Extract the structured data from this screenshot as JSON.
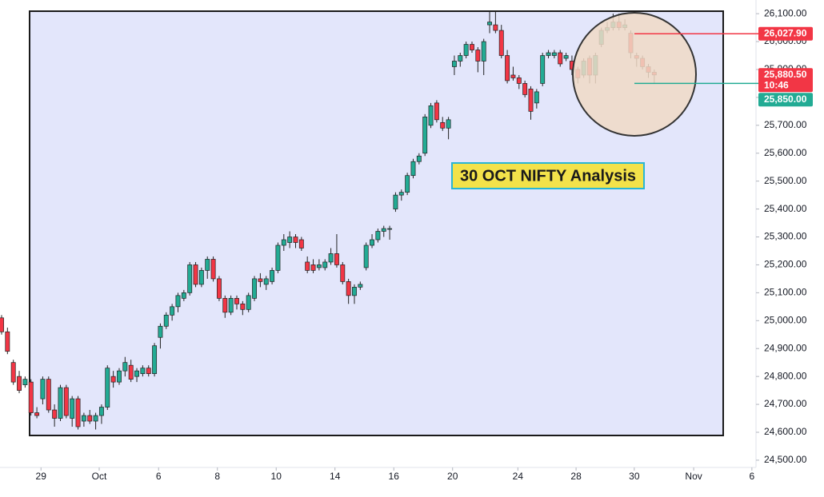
{
  "chart_data": {
    "type": "candlestick",
    "up_color": "#22ab94",
    "down_color": "#f23645",
    "annotation": "30 OCT NIFTY Analysis",
    "countdown": "10:46",
    "ohlc": [
      [
        25010,
        25020,
        24950,
        24960
      ],
      [
        24960,
        24975,
        24880,
        24890
      ],
      [
        24850,
        24860,
        24770,
        24780
      ],
      [
        24800,
        24820,
        24740,
        24750
      ],
      [
        24770,
        24800,
        24760,
        24790
      ],
      [
        24780,
        24790,
        24660,
        24670
      ],
      [
        24670,
        24690,
        24650,
        24660
      ],
      [
        24720,
        24800,
        24700,
        24790
      ],
      [
        24790,
        24800,
        24670,
        24680
      ],
      [
        24680,
        24700,
        24620,
        24650
      ],
      [
        24650,
        24770,
        24640,
        24760
      ],
      [
        24760,
        24770,
        24650,
        24660
      ],
      [
        24650,
        24730,
        24620,
        24720
      ],
      [
        24720,
        24730,
        24610,
        24620
      ],
      [
        24640,
        24670,
        24620,
        24660
      ],
      [
        24660,
        24680,
        24630,
        24640
      ],
      [
        24640,
        24670,
        24610,
        24660
      ],
      [
        24660,
        24700,
        24630,
        24690
      ],
      [
        24690,
        24840,
        24680,
        24830
      ],
      [
        24800,
        24820,
        24760,
        24780
      ],
      [
        24780,
        24830,
        24770,
        24820
      ],
      [
        24820,
        24870,
        24800,
        24850
      ],
      [
        24840,
        24860,
        24780,
        24790
      ],
      [
        24800,
        24830,
        24780,
        24820
      ],
      [
        24810,
        24840,
        24800,
        24830
      ],
      [
        24830,
        24840,
        24800,
        24810
      ],
      [
        24810,
        24920,
        24800,
        24910
      ],
      [
        24940,
        24990,
        24900,
        24980
      ],
      [
        24980,
        25030,
        24970,
        25020
      ],
      [
        25020,
        25060,
        25000,
        25050
      ],
      [
        25050,
        25100,
        25030,
        25090
      ],
      [
        25080,
        25110,
        25070,
        25100
      ],
      [
        25100,
        25210,
        25090,
        25200
      ],
      [
        25200,
        25210,
        25120,
        25130
      ],
      [
        25130,
        25190,
        25120,
        25180
      ],
      [
        25180,
        25230,
        25150,
        25220
      ],
      [
        25220,
        25230,
        25140,
        25150
      ],
      [
        25150,
        25160,
        25070,
        25080
      ],
      [
        25080,
        25090,
        25010,
        25030
      ],
      [
        25030,
        25090,
        25020,
        25080
      ],
      [
        25080,
        25090,
        25040,
        25060
      ],
      [
        25060,
        25070,
        25020,
        25040
      ],
      [
        25040,
        25100,
        25030,
        25090
      ],
      [
        25080,
        25160,
        25070,
        25150
      ],
      [
        25150,
        25170,
        25120,
        25140
      ],
      [
        25130,
        25160,
        25110,
        25150
      ],
      [
        25140,
        25190,
        25130,
        25180
      ],
      [
        25180,
        25280,
        25170,
        25270
      ],
      [
        25270,
        25310,
        25250,
        25290
      ],
      [
        25280,
        25320,
        25260,
        25300
      ],
      [
        25300,
        25310,
        25260,
        25280
      ],
      [
        25290,
        25300,
        25250,
        25260
      ],
      [
        25210,
        25230,
        25170,
        25180
      ],
      [
        25200,
        25220,
        25170,
        25180
      ],
      [
        25190,
        25220,
        25180,
        25200
      ],
      [
        25190,
        25220,
        25180,
        25210
      ],
      [
        25210,
        25260,
        25200,
        25240
      ],
      [
        25240,
        25310,
        25190,
        25200
      ],
      [
        25200,
        25210,
        25130,
        25140
      ],
      [
        25140,
        25150,
        25060,
        25090
      ],
      [
        25090,
        25130,
        25060,
        25120
      ],
      [
        25120,
        25140,
        25110,
        25130
      ],
      [
        25190,
        25280,
        25180,
        25270
      ],
      [
        25270,
        25310,
        25260,
        25290
      ],
      [
        25290,
        25330,
        25280,
        25320
      ],
      [
        25320,
        25340,
        25300,
        25330
      ],
      [
        25330,
        25340,
        25290,
        25330
      ],
      [
        25400,
        25460,
        25390,
        25450
      ],
      [
        25450,
        25470,
        25430,
        25460
      ],
      [
        25460,
        25530,
        25450,
        25520
      ],
      [
        25520,
        25580,
        25510,
        25570
      ],
      [
        25570,
        25600,
        25560,
        25590
      ],
      [
        25600,
        25740,
        25590,
        25730
      ],
      [
        25700,
        25780,
        25690,
        25770
      ],
      [
        25780,
        25790,
        25710,
        25720
      ],
      [
        25710,
        25730,
        25680,
        25690
      ],
      [
        25690,
        25730,
        25650,
        25720
      ],
      [
        25910,
        25950,
        25880,
        25930
      ],
      [
        25930,
        25960,
        25910,
        25950
      ],
      [
        25950,
        26000,
        25940,
        25990
      ],
      [
        25990,
        26000,
        25960,
        25970
      ],
      [
        25970,
        25980,
        25890,
        25930
      ],
      [
        25930,
        26010,
        25880,
        26000
      ],
      [
        26060,
        26110,
        26030,
        26070
      ],
      [
        26060,
        26110,
        26030,
        26040
      ],
      [
        26040,
        26060,
        25940,
        25950
      ],
      [
        25950,
        25970,
        25850,
        25860
      ],
      [
        25880,
        25910,
        25860,
        25870
      ],
      [
        25870,
        25880,
        25830,
        25850
      ],
      [
        25850,
        25860,
        25800,
        25810
      ],
      [
        25830,
        25840,
        25720,
        25750
      ],
      [
        25780,
        25830,
        25760,
        25820
      ],
      [
        25850,
        25960,
        25840,
        25950
      ],
      [
        25950,
        25970,
        25940,
        25960
      ],
      [
        25950,
        25970,
        25940,
        25960
      ],
      [
        25960,
        25970,
        25910,
        25920
      ],
      [
        25940,
        25960,
        25930,
        25950
      ],
      [
        25930,
        25950,
        25880,
        25900
      ],
      [
        25900,
        25910,
        25850,
        25870
      ],
      [
        25880,
        25940,
        25870,
        25930
      ],
      [
        25940,
        25950,
        25850,
        25880
      ],
      [
        25880,
        25960,
        25850,
        25950
      ],
      [
        25990,
        26050,
        25980,
        26040
      ],
      [
        26040,
        26070,
        26030,
        26050
      ],
      [
        26050,
        26100,
        26040,
        26070
      ],
      [
        26070,
        26100,
        26040,
        26050
      ],
      [
        26050,
        26080,
        26040,
        26060
      ],
      [
        26030,
        26040,
        25940,
        25960
      ],
      [
        25950,
        25960,
        25910,
        25940
      ],
      [
        25940,
        25950,
        25900,
        25910
      ],
      [
        25910,
        25920,
        25870,
        25890
      ],
      [
        25890,
        25900,
        25850,
        25880.5
      ]
    ],
    "xlim": [
      -0.27,
      128.3
    ],
    "xticks": [
      {
        "value": 6.7,
        "label": "29"
      },
      {
        "value": 16.6,
        "label": "Oct"
      },
      {
        "value": 26.7,
        "label": "6"
      },
      {
        "value": 36.7,
        "label": "8"
      },
      {
        "value": 46.7,
        "label": "10"
      },
      {
        "value": 56.7,
        "label": "14"
      },
      {
        "value": 66.7,
        "label": "16"
      },
      {
        "value": 76.7,
        "label": "20"
      },
      {
        "value": 87.8,
        "label": "24"
      },
      {
        "value": 97.7,
        "label": "28"
      },
      {
        "value": 107.6,
        "label": "30"
      },
      {
        "value": 117.7,
        "label": "Nov"
      },
      {
        "value": 127.6,
        "label": "6"
      }
    ],
    "ylim": [
      24474,
      26149
    ],
    "yticks": [
      {
        "value": 24500,
        "label": "24,500.00"
      },
      {
        "value": 24600,
        "label": "24,600.00"
      },
      {
        "value": 24700,
        "label": "24,700.00"
      },
      {
        "value": 24800,
        "label": "24,800.00"
      },
      {
        "value": 24900,
        "label": "24,900.00"
      },
      {
        "value": 25000,
        "label": "25,000.00"
      },
      {
        "value": 25100,
        "label": "25,100.00"
      },
      {
        "value": 25200,
        "label": "25,200.00"
      },
      {
        "value": 25300,
        "label": "25,300.00"
      },
      {
        "value": 25400,
        "label": "25,400.00"
      },
      {
        "value": 25500,
        "label": "25,500.00"
      },
      {
        "value": 25600,
        "label": "25,600.00"
      },
      {
        "value": 25700,
        "label": "25,700.00"
      },
      {
        "value": 25800,
        "label": "25,800.00"
      },
      {
        "value": 25900,
        "label": "25,900.00"
      },
      {
        "value": 26000,
        "label": "26,000.00"
      },
      {
        "value": 26100,
        "label": "26,100.00"
      }
    ],
    "price_markers": [
      {
        "value": 26027.9,
        "label": "26,027.90",
        "color": "#f23645",
        "guide": true
      },
      {
        "value": 25880.5,
        "label": "25,880.50",
        "color": "#f23645",
        "guide": false
      },
      {
        "value": 25850,
        "label": "25,850.00",
        "color": "#22ab94",
        "guide": true
      }
    ]
  }
}
